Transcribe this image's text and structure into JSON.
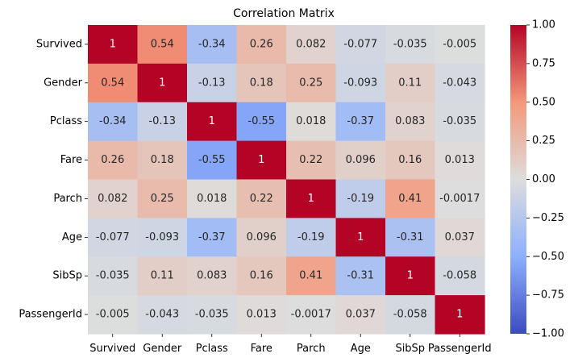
{
  "chart_data": {
    "type": "heatmap",
    "title": "Correlation Matrix",
    "xlabel": "",
    "ylabel": "",
    "colormap": "coolwarm",
    "x_categories": [
      "Survived",
      "Gender",
      "Pclass",
      "Fare",
      "Parch",
      "Age",
      "SibSp",
      "PassengerId"
    ],
    "y_categories": [
      "Survived",
      "Gender",
      "Pclass",
      "Fare",
      "Parch",
      "Age",
      "SibSp",
      "PassengerId"
    ],
    "cell_labels": [
      [
        "1",
        "0.54",
        "-0.34",
        "0.26",
        "0.082",
        "-0.077",
        "-0.035",
        "-0.005"
      ],
      [
        "0.54",
        "1",
        "-0.13",
        "0.18",
        "0.25",
        "-0.093",
        "0.11",
        "-0.043"
      ],
      [
        "-0.34",
        "-0.13",
        "1",
        "-0.55",
        "0.018",
        "-0.37",
        "0.083",
        "-0.035"
      ],
      [
        "0.26",
        "0.18",
        "-0.55",
        "1",
        "0.22",
        "0.096",
        "0.16",
        "0.013"
      ],
      [
        "0.082",
        "0.25",
        "0.018",
        "0.22",
        "1",
        "-0.19",
        "0.41",
        "-0.0017"
      ],
      [
        "-0.077",
        "-0.093",
        "-0.37",
        "0.096",
        "-0.19",
        "1",
        "-0.31",
        "0.037"
      ],
      [
        "-0.035",
        "0.11",
        "0.083",
        "0.16",
        "0.41",
        "-0.31",
        "1",
        "-0.058"
      ],
      [
        "-0.005",
        "-0.043",
        "-0.035",
        "0.013",
        "-0.0017",
        "0.037",
        "-0.058",
        "1"
      ]
    ],
    "colorbar": {
      "range": [
        -1.0,
        1.0
      ],
      "ticks": [
        1.0,
        0.75,
        0.5,
        0.25,
        0.0,
        -0.25,
        -0.5,
        -0.75,
        -1.0
      ],
      "tick_labels": [
        "1.00",
        "0.75",
        "0.50",
        "0.25",
        "0.00",
        "−0.25",
        "−0.50",
        "−0.75",
        "−1.00"
      ]
    }
  }
}
